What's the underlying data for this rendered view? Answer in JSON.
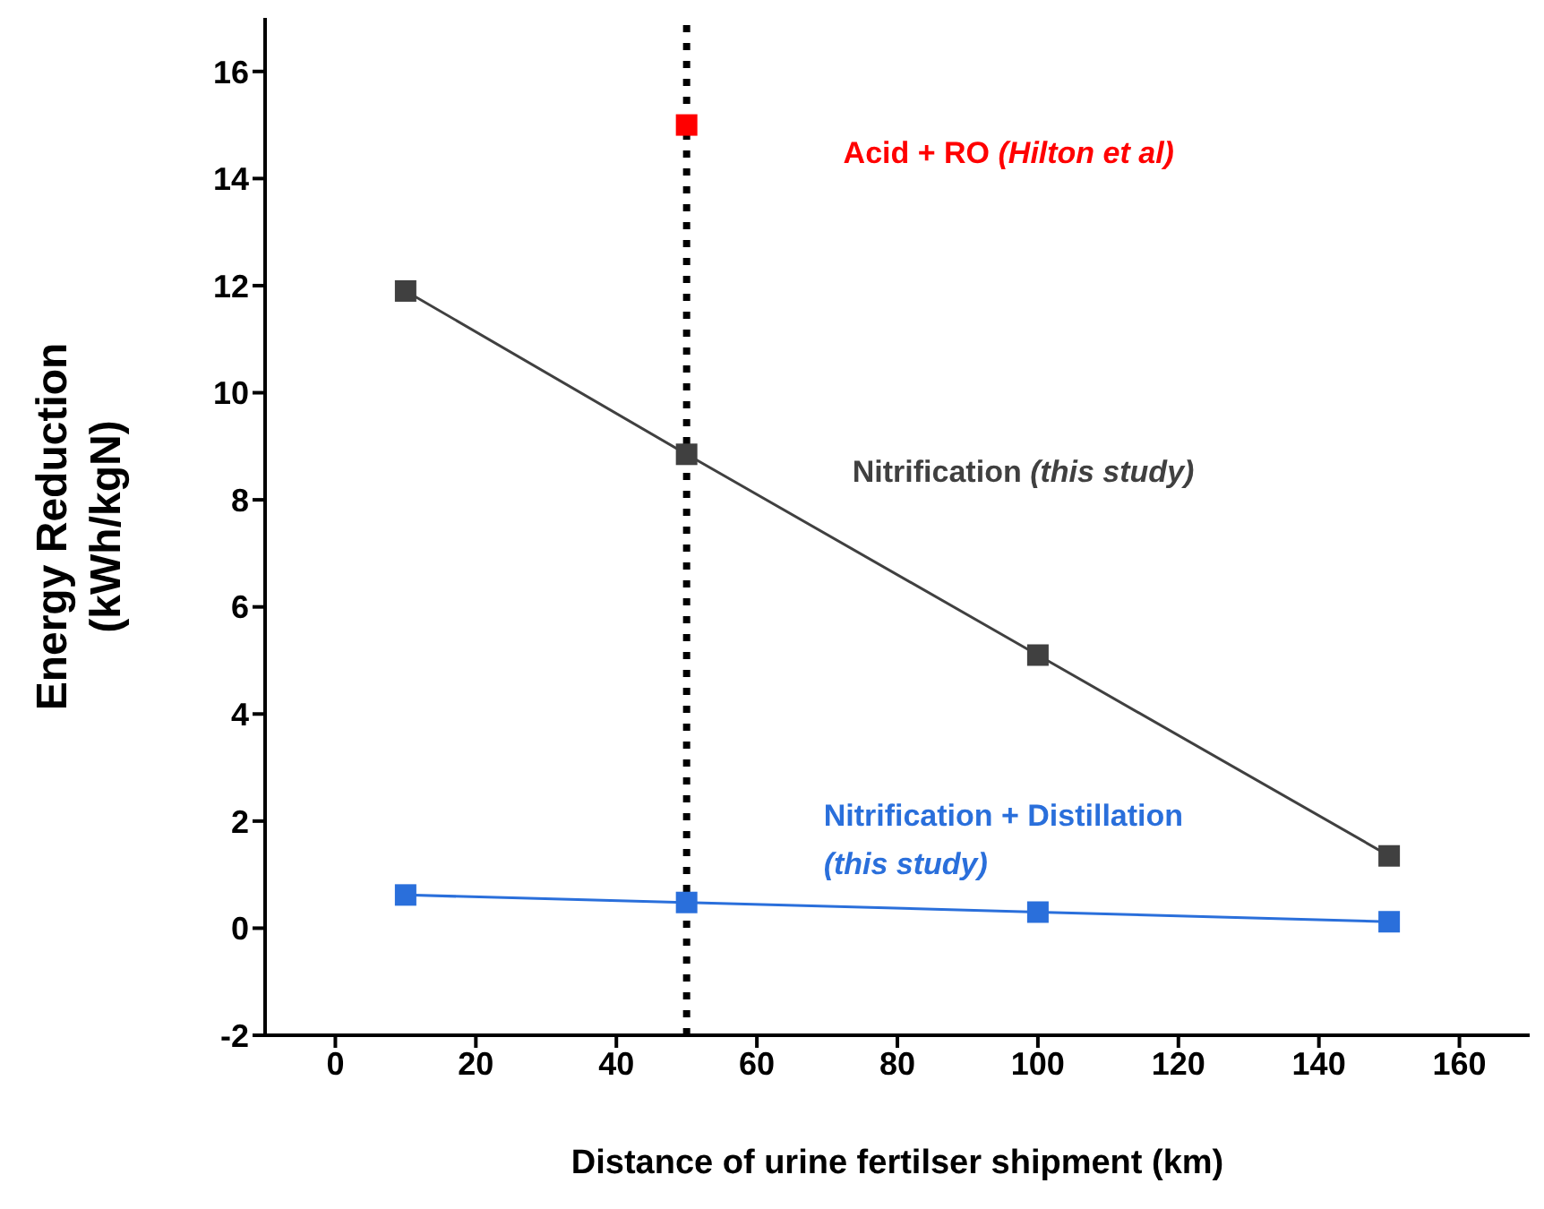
{
  "chart_data": {
    "type": "line",
    "xlabel": "Distance of urine fertilser shipment (km)",
    "ylabel": "Energy Reduction (kWh/kgN)",
    "xlim": [
      -10,
      170
    ],
    "xticks": [
      0,
      20,
      40,
      60,
      80,
      100,
      120,
      140,
      160
    ],
    "ylim": [
      -2,
      17
    ],
    "yticks": [
      -2,
      0,
      2,
      4,
      6,
      8,
      10,
      12,
      14,
      16
    ],
    "grid": false,
    "legend": false,
    "marker": "square",
    "line_style": "solid",
    "ref_lines": [
      {
        "axis": "x",
        "value": 50,
        "color": "#000000",
        "line_style": "dotted"
      }
    ],
    "series": [
      {
        "name": "Acid + RO (Hilton et al)",
        "type": "scatter",
        "color": "#ff0000",
        "x": [
          50
        ],
        "values": [
          15
        ]
      },
      {
        "name": "Nitrification (this study)",
        "color": "#404040",
        "x": [
          10,
          50,
          100,
          150
        ],
        "values": [
          11.9,
          8.85,
          5.1,
          1.35
        ]
      },
      {
        "name": "Nitrification + Distillation (this study)",
        "color": "#2a6fdb",
        "x": [
          10,
          50,
          100,
          150
        ],
        "values": [
          0.62,
          0.48,
          0.3,
          0.12
        ]
      }
    ]
  }
}
